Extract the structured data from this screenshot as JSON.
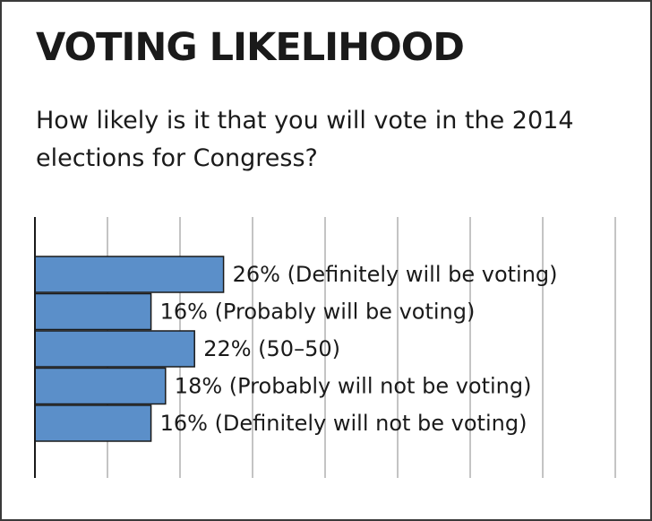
{
  "title": "VOTING LIKELIHOOD",
  "subtitle": "How likely is it that you will vote in the 2014 elections for Congress?",
  "colors": {
    "bar_fill": "#5b8fc9",
    "bar_stroke": "#1a1a1a",
    "grid": "#b0b0b0",
    "axis": "#1a1a1a"
  },
  "chart_data": {
    "type": "bar",
    "orientation": "horizontal",
    "categories": [
      "Definitely will be voting",
      "Probably will be voting",
      "50–50",
      "Probably will not be voting",
      "Definitely will not be voting"
    ],
    "values": [
      26,
      16,
      22,
      18,
      16
    ],
    "labels": [
      "26% (Definitely will be voting)",
      "16% (Probably will be voting)",
      "22% (50–50)",
      "18% (Probably will not be voting)",
      "16% (Definitely will not be voting)"
    ],
    "xlim": [
      0,
      80
    ],
    "grid": true,
    "grid_step": 10
  }
}
